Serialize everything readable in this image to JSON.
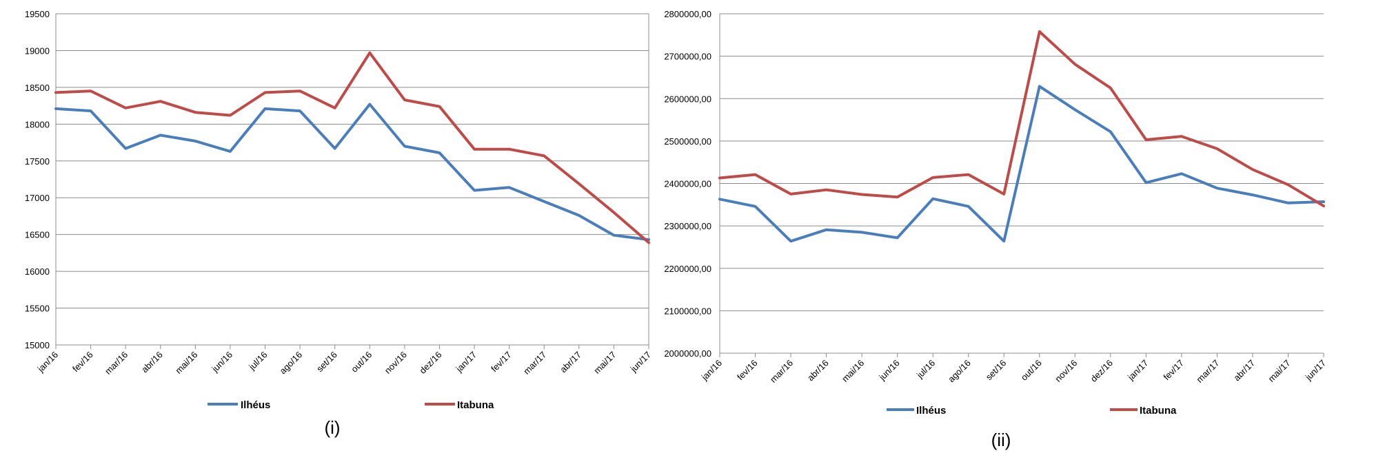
{
  "colors": {
    "ilheus": "#4a7ebb",
    "itabuna": "#be4b48",
    "grid": "#8c8c8c"
  },
  "chart_data": [
    {
      "type": "line",
      "caption": "(i)",
      "categories": [
        "jan/16",
        "fev/16",
        "mar/16",
        "abr/16",
        "mai/16",
        "jun/16",
        "jul/16",
        "ago/16",
        "set/16",
        "out/16",
        "nov/16",
        "dez/16",
        "jan/17",
        "fev/17",
        "mar/17",
        "abr/17",
        "mai/17",
        "jun/17"
      ],
      "ylim": [
        15000,
        19500
      ],
      "yticks": [
        15000,
        15500,
        16000,
        16500,
        17000,
        17500,
        18000,
        18500,
        19000,
        19500
      ],
      "ytick_labels": [
        "15000",
        "15500",
        "16000",
        "16500",
        "17000",
        "17500",
        "18000",
        "18500",
        "19000",
        "19500"
      ],
      "series": [
        {
          "name": "Ilhéus",
          "values": [
            18210,
            18180,
            17670,
            17850,
            17770,
            17630,
            18210,
            18180,
            17670,
            18270,
            17700,
            17610,
            17100,
            17140,
            16950,
            16760,
            16490,
            16430
          ]
        },
        {
          "name": "Itabuna",
          "values": [
            18430,
            18450,
            18220,
            18310,
            18160,
            18120,
            18430,
            18450,
            18220,
            18970,
            18330,
            18240,
            17660,
            17660,
            17570,
            17190,
            16800,
            16390
          ]
        }
      ]
    },
    {
      "type": "line",
      "caption": "(ii)",
      "categories": [
        "jan/16",
        "fev/16",
        "mar/16",
        "abr/16",
        "mai/16",
        "jun/16",
        "jul/16",
        "ago/16",
        "set/16",
        "out/16",
        "nov/16",
        "dez/16",
        "jan/17",
        "fev/17",
        "mar/17",
        "abr/17",
        "mai/17",
        "jun/17"
      ],
      "ylim": [
        2000000,
        2800000
      ],
      "yticks": [
        2000000,
        2100000,
        2200000,
        2300000,
        2400000,
        2500000,
        2600000,
        2700000,
        2800000
      ],
      "ytick_labels": [
        "2000000,00",
        "2100000,00",
        "2200000,00",
        "2300000,00",
        "2400000,00",
        "2500000,00",
        "2600000,00",
        "2700000,00",
        "2800000,00"
      ],
      "series": [
        {
          "name": "Ilhéus",
          "values": [
            2363000,
            2346000,
            2264000,
            2291000,
            2285000,
            2272000,
            2364000,
            2346000,
            2264000,
            2629000,
            2574000,
            2522000,
            2402000,
            2423000,
            2389000,
            2373000,
            2354000,
            2357000
          ]
        },
        {
          "name": "Itabuna",
          "values": [
            2413000,
            2421000,
            2375000,
            2385000,
            2374000,
            2368000,
            2414000,
            2421000,
            2375000,
            2758000,
            2681000,
            2625000,
            2503000,
            2511000,
            2482000,
            2433000,
            2397000,
            2347000
          ]
        }
      ]
    }
  ]
}
